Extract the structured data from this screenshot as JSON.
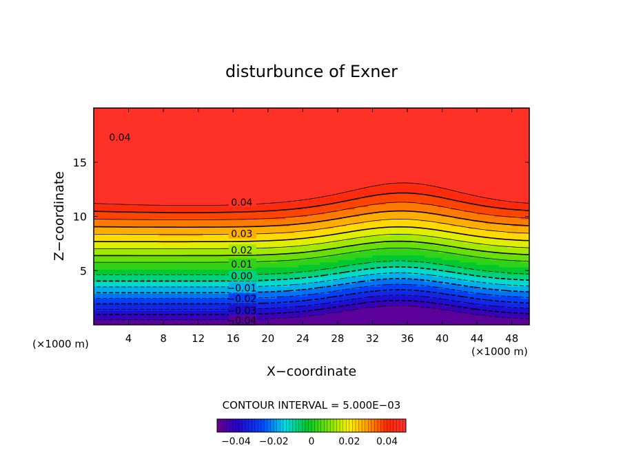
{
  "chart_data": {
    "type": "heatmap",
    "subtype": "filled-contour",
    "title": "disturbunce of Exner",
    "xlabel": "X−coordinate",
    "ylabel": "Z−coordinate",
    "x_unit_left": "(×1000 m)",
    "x_unit_right": "(×1000 m)",
    "xlim": [
      0,
      50
    ],
    "ylim": [
      0,
      20
    ],
    "x_ticks": [
      4,
      8,
      12,
      16,
      20,
      24,
      28,
      32,
      36,
      40,
      44,
      48
    ],
    "y_ticks": [
      5,
      10,
      15
    ],
    "contour_interval_text": "CONTOUR INTERVAL = 5.000E−03",
    "contour_interval": 0.005,
    "value_range": [
      -0.05,
      0.05
    ],
    "negative_contours_dashed": true,
    "contour_labels": [
      {
        "text": "0.04",
        "x": 3,
        "z": 17.3
      },
      {
        "text": "0.04",
        "x": 17,
        "z": 11.3
      },
      {
        "text": "0.03",
        "x": 17,
        "z": 8.4
      },
      {
        "text": "0.02",
        "x": 17,
        "z": 6.9
      },
      {
        "text": "0.01",
        "x": 17,
        "z": 5.6
      },
      {
        "text": "0.00",
        "x": 17,
        "z": 4.5
      },
      {
        "text": "−0.01",
        "x": 17,
        "z": 3.4
      },
      {
        "text": "−0.02",
        "x": 17,
        "z": 2.4
      },
      {
        "text": "−0.03",
        "x": 17,
        "z": 1.3
      },
      {
        "text": "−0.04",
        "x": 17,
        "z": 0.4
      }
    ],
    "colorbar": {
      "ticks": [
        {
          "text": "−0.04",
          "value": -0.04
        },
        {
          "text": "−0.02",
          "value": -0.02
        },
        {
          "text": "0",
          "value": 0
        },
        {
          "text": "0.02",
          "value": 0.02
        },
        {
          "text": "0.04",
          "value": 0.04
        }
      ],
      "range": [
        -0.05,
        0.05
      ]
    }
  }
}
